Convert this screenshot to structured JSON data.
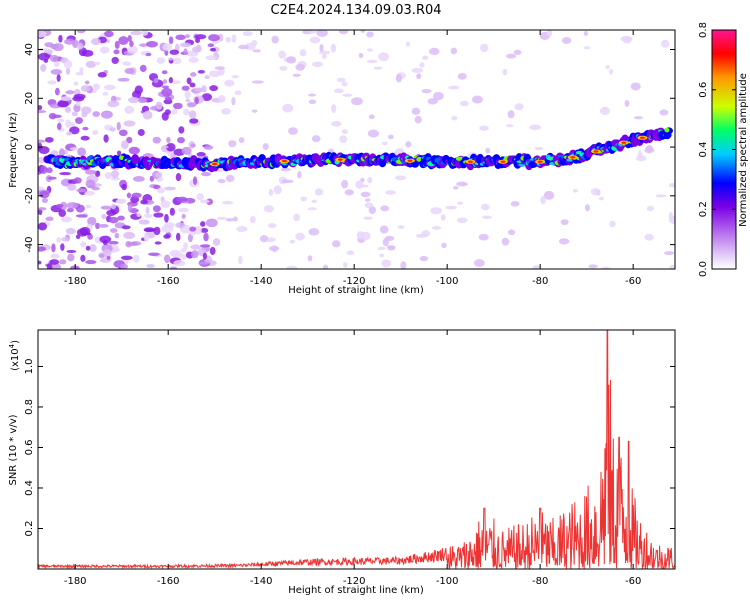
{
  "title": "C2E4.2024.134.09.03.R04",
  "chart_data": [
    {
      "type": "heatmap",
      "name": "spectrogram",
      "xlabel": "Height of straight line (km)",
      "ylabel": "Frequency (Hz)",
      "xlim": [
        -188,
        -51
      ],
      "ylim": [
        -50,
        48
      ],
      "xticks": [
        -180,
        -160,
        -140,
        -120,
        -100,
        -80,
        -60
      ],
      "yticks": [
        -40,
        -20,
        0,
        20,
        40
      ],
      "colorbar": {
        "label": "Normalized spectral amplitude",
        "range": [
          0,
          0.8
        ],
        "ticks": [
          0.0,
          0.2,
          0.4,
          0.6,
          0.8
        ],
        "tick_labels": [
          "0.0",
          "0.2",
          "0.4",
          "0.6",
          "0.8"
        ],
        "colors": [
          "#ffffff",
          "#e2c9f7",
          "#b266ee",
          "#7a00e6",
          "#0000ff",
          "#00ccff",
          "#00ff66",
          "#ccff00",
          "#ff9900",
          "#ff0000",
          "#ff1493"
        ]
      },
      "ridge": {
        "x": [
          -186,
          -170,
          -150,
          -140,
          -120,
          -100,
          -90,
          -80,
          -75,
          -70,
          -65,
          -60,
          -55,
          -52
        ],
        "y": [
          -6,
          -6,
          -7,
          -6,
          -5,
          -6,
          -6,
          -6,
          -5,
          -3,
          0,
          3,
          5,
          6
        ]
      }
    },
    {
      "type": "line",
      "name": "snr",
      "xlabel": "Height of straight line (km)",
      "ylabel": "SNR (10 * v/v)",
      "yscale_label": "(x10",
      "yscale_exp": "4",
      "xlim": [
        -188,
        -51
      ],
      "ylim": [
        0,
        1.18
      ],
      "xticks": [
        -180,
        -160,
        -140,
        -120,
        -100,
        -80,
        -60
      ],
      "yticks": [
        0.2,
        0.4,
        0.6,
        0.8,
        1.0
      ],
      "ytick_labels": [
        "0.2",
        "0.4",
        "0.6",
        "0.8",
        "1.0"
      ],
      "color": "#ee3333",
      "envelope": {
        "x": [
          -188,
          -160,
          -145,
          -130,
          -110,
          -102,
          -96,
          -92,
          -88,
          -84,
          -80,
          -77,
          -74,
          -71,
          -69,
          -67,
          -66,
          -65.3,
          -64.5,
          -63,
          -61.5,
          -60,
          -58,
          -55,
          -51
        ],
        "y": [
          0.02,
          0.02,
          0.025,
          0.05,
          0.06,
          0.1,
          0.15,
          0.3,
          0.2,
          0.23,
          0.3,
          0.25,
          0.33,
          0.38,
          0.45,
          0.6,
          1.0,
          1.18,
          0.75,
          0.63,
          0.62,
          0.38,
          0.25,
          0.14,
          0.12
        ]
      },
      "peaks": [
        {
          "x": -92,
          "y": 0.3
        },
        {
          "x": -80,
          "y": 0.3
        },
        {
          "x": -65.5,
          "y": 1.18
        },
        {
          "x": -63,
          "y": 0.65
        },
        {
          "x": -61,
          "y": 0.63
        }
      ]
    }
  ]
}
